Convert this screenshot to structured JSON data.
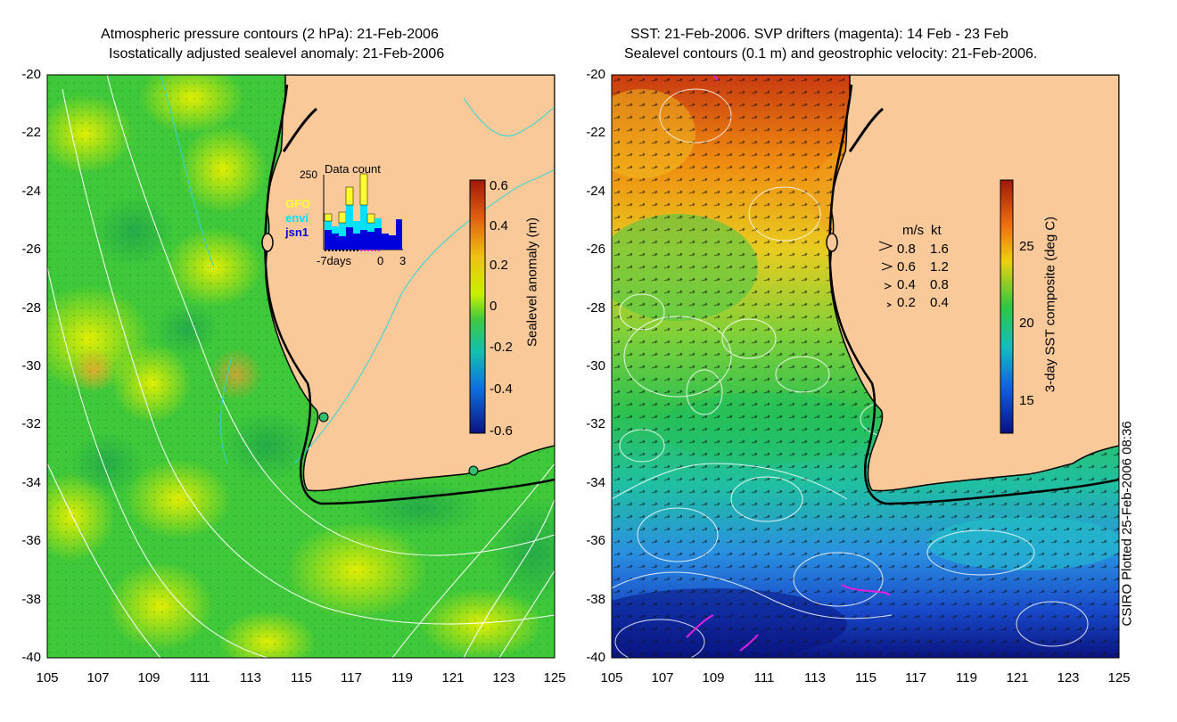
{
  "left_panel": {
    "title_line1": "Atmospheric pressure contours (2 hPa): 21-Feb-2006",
    "title_line2": "Isostatically adjusted sealevel anomaly: 21-Feb-2006",
    "colorbar_label": "Sealevel anomaly (m)",
    "colorbar_ticks": [
      "0.6",
      "0.4",
      "0.2",
      "0",
      "-0.2",
      "-0.4",
      "-0.6"
    ],
    "inset": {
      "title": "Data count",
      "ymax_label": "250",
      "legend": [
        {
          "label": "GFO",
          "color": "#ffff33"
        },
        {
          "label": "envi",
          "color": "#00e0ff"
        },
        {
          "label": "jsn1",
          "color": "#0000dd"
        }
      ],
      "x_labels": [
        "-7days",
        "0",
        "3"
      ]
    }
  },
  "right_panel": {
    "title_line1": "SST: 21-Feb-2006. SVP drifters (magenta): 14 Feb - 23 Feb",
    "title_line2": "Sealevel contours (0.1 m) and geostrophic velocity: 21-Feb-2006.",
    "colorbar_label": "3-day SST composite (deg C)",
    "colorbar_ticks": [
      "25",
      "20",
      "15"
    ],
    "velocity_key": {
      "header_ms": "m/s",
      "header_kt": "kt",
      "rows": [
        {
          "ms": "0.8",
          "kt": "1.6"
        },
        {
          "ms": "0.6",
          "kt": "1.2"
        },
        {
          "ms": "0.4",
          "kt": "0.8"
        },
        {
          "ms": "0.2",
          "kt": "0.4"
        }
      ]
    }
  },
  "axes": {
    "y_ticks": [
      "-20",
      "-22",
      "-24",
      "-26",
      "-28",
      "-30",
      "-32",
      "-34",
      "-36",
      "-38",
      "-40"
    ],
    "x_ticks": [
      "105",
      "107",
      "109",
      "111",
      "113",
      "115",
      "117",
      "119",
      "121",
      "123",
      "125"
    ]
  },
  "credit": "CSIRO Plotted 25-Feb-2006 08:36",
  "colors": {
    "land": "#f9c99a",
    "ocean_green": "#3ec83a",
    "ocean_yellow": "#c8f000",
    "coast": "#000000",
    "contour_white": "#ffffff",
    "contour_cyan": "#2fd6d6",
    "drifter_magenta": "#e020e0"
  }
}
